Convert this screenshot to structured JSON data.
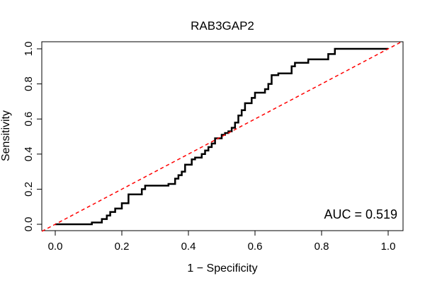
{
  "chart_data": {
    "type": "line",
    "title": "RAB3GAP2",
    "xlabel": "1 − Specificity",
    "ylabel": "Sensitivity",
    "xlim": [
      0,
      1
    ],
    "ylim": [
      0,
      1
    ],
    "xticks": [
      "0.0",
      "0.2",
      "0.4",
      "0.6",
      "0.8",
      "1.0"
    ],
    "yticks": [
      "0.0",
      "0.2",
      "0.4",
      "0.6",
      "0.8",
      "1.0"
    ],
    "grid": false,
    "annotation": "AUC = 0.519",
    "series": [
      {
        "color": "#000000",
        "style": "solid",
        "points": [
          [
            0.0,
            0.0
          ],
          [
            0.11,
            0.0
          ],
          [
            0.11,
            0.01
          ],
          [
            0.14,
            0.01
          ],
          [
            0.14,
            0.03
          ],
          [
            0.155,
            0.03
          ],
          [
            0.155,
            0.05
          ],
          [
            0.165,
            0.05
          ],
          [
            0.165,
            0.07
          ],
          [
            0.18,
            0.07
          ],
          [
            0.18,
            0.09
          ],
          [
            0.2,
            0.09
          ],
          [
            0.2,
            0.12
          ],
          [
            0.22,
            0.12
          ],
          [
            0.22,
            0.17
          ],
          [
            0.26,
            0.17
          ],
          [
            0.26,
            0.2
          ],
          [
            0.27,
            0.2
          ],
          [
            0.27,
            0.22
          ],
          [
            0.34,
            0.22
          ],
          [
            0.34,
            0.23
          ],
          [
            0.36,
            0.23
          ],
          [
            0.36,
            0.26
          ],
          [
            0.37,
            0.26
          ],
          [
            0.37,
            0.28
          ],
          [
            0.38,
            0.28
          ],
          [
            0.38,
            0.3
          ],
          [
            0.39,
            0.3
          ],
          [
            0.39,
            0.34
          ],
          [
            0.41,
            0.34
          ],
          [
            0.41,
            0.37
          ],
          [
            0.42,
            0.37
          ],
          [
            0.42,
            0.38
          ],
          [
            0.44,
            0.38
          ],
          [
            0.44,
            0.4
          ],
          [
            0.45,
            0.4
          ],
          [
            0.45,
            0.42
          ],
          [
            0.46,
            0.42
          ],
          [
            0.46,
            0.44
          ],
          [
            0.47,
            0.44
          ],
          [
            0.47,
            0.46
          ],
          [
            0.48,
            0.46
          ],
          [
            0.48,
            0.49
          ],
          [
            0.5,
            0.49
          ],
          [
            0.5,
            0.51
          ],
          [
            0.51,
            0.51
          ],
          [
            0.51,
            0.52
          ],
          [
            0.52,
            0.52
          ],
          [
            0.52,
            0.53
          ],
          [
            0.53,
            0.53
          ],
          [
            0.53,
            0.55
          ],
          [
            0.54,
            0.55
          ],
          [
            0.54,
            0.58
          ],
          [
            0.55,
            0.58
          ],
          [
            0.55,
            0.62
          ],
          [
            0.56,
            0.62
          ],
          [
            0.56,
            0.65
          ],
          [
            0.57,
            0.65
          ],
          [
            0.57,
            0.69
          ],
          [
            0.59,
            0.69
          ],
          [
            0.59,
            0.72
          ],
          [
            0.6,
            0.72
          ],
          [
            0.6,
            0.75
          ],
          [
            0.63,
            0.75
          ],
          [
            0.63,
            0.77
          ],
          [
            0.64,
            0.77
          ],
          [
            0.64,
            0.8
          ],
          [
            0.65,
            0.8
          ],
          [
            0.65,
            0.85
          ],
          [
            0.67,
            0.85
          ],
          [
            0.67,
            0.86
          ],
          [
            0.71,
            0.86
          ],
          [
            0.71,
            0.9
          ],
          [
            0.72,
            0.9
          ],
          [
            0.72,
            0.92
          ],
          [
            0.76,
            0.92
          ],
          [
            0.76,
            0.94
          ],
          [
            0.82,
            0.94
          ],
          [
            0.82,
            0.97
          ],
          [
            0.84,
            0.97
          ],
          [
            0.84,
            1.0
          ],
          [
            1.0,
            1.0
          ]
        ]
      },
      {
        "color": "#ff0000",
        "style": "dashed",
        "points": [
          [
            -0.04,
            -0.04
          ],
          [
            1.04,
            1.04
          ]
        ]
      }
    ]
  }
}
